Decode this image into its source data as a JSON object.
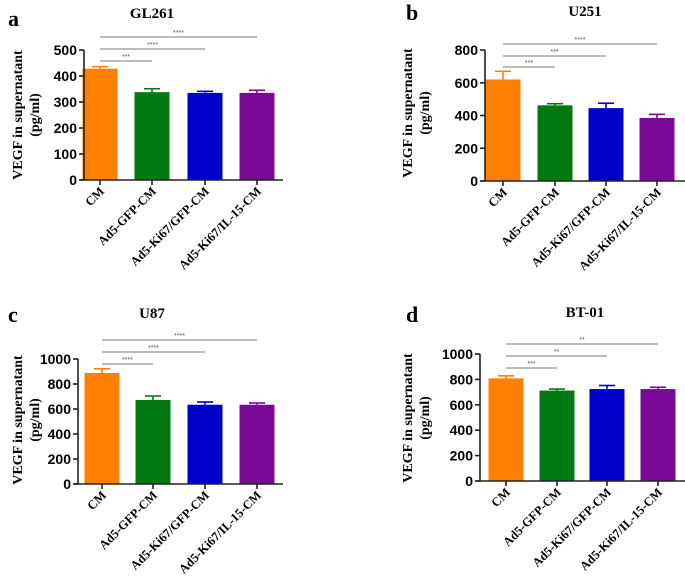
{
  "figure": {
    "colors": {
      "CM": "#ff8000",
      "Ad5-GFP-CM": "#007a10",
      "Ad5-Ki67/GFP-CM": "#0000c8",
      "Ad5-Ki67/IL-15-CM": "#7a0a96"
    }
  },
  "chart_data": [
    {
      "panel": "a",
      "type": "bar",
      "title": "GL261",
      "xlabel": "",
      "ylabel": "VEGF in supernatant (pg/ml)",
      "categories": [
        "CM",
        "Ad5-GFP-CM",
        "Ad5-Ki67/GFP-CM",
        "Ad5-Ki67/IL-15-CM"
      ],
      "values": [
        428,
        338,
        335,
        335
      ],
      "error": [
        8,
        13,
        6,
        10
      ],
      "ylim": [
        0,
        500
      ],
      "yticks": [
        0,
        100,
        200,
        300,
        400,
        500
      ],
      "significance": [
        {
          "from": "CM",
          "to": "Ad5-GFP-CM",
          "label": "***"
        },
        {
          "from": "CM",
          "to": "Ad5-Ki67/GFP-CM",
          "label": "****"
        },
        {
          "from": "CM",
          "to": "Ad5-Ki67/IL-15-CM",
          "label": "****"
        }
      ]
    },
    {
      "panel": "b",
      "type": "bar",
      "title": "U251",
      "xlabel": "",
      "ylabel": "VEGF in supernatant (pg/ml)",
      "categories": [
        "CM",
        "Ad5-GFP-CM",
        "Ad5-Ki67/GFP-CM",
        "Ad5-Ki67/IL-15-CM"
      ],
      "values": [
        620,
        462,
        445,
        385
      ],
      "error": [
        50,
        10,
        30,
        22
      ],
      "ylim": [
        0,
        800
      ],
      "yticks": [
        0,
        200,
        400,
        600,
        800
      ],
      "significance": [
        {
          "from": "CM",
          "to": "Ad5-GFP-CM",
          "label": "***"
        },
        {
          "from": "CM",
          "to": "Ad5-Ki67/GFP-CM",
          "label": "***"
        },
        {
          "from": "CM",
          "to": "Ad5-Ki67/IL-15-CM",
          "label": "****"
        }
      ]
    },
    {
      "panel": "c",
      "type": "bar",
      "title": "U87",
      "xlabel": "",
      "ylabel": "VEGF in supernatant (pg/ml)",
      "categories": [
        "CM",
        "Ad5-GFP-CM",
        "Ad5-Ki67/GFP-CM",
        "Ad5-Ki67/IL-15-CM"
      ],
      "values": [
        888,
        672,
        634,
        634
      ],
      "error": [
        34,
        32,
        22,
        14
      ],
      "ylim": [
        0,
        1000
      ],
      "yticks": [
        0,
        200,
        400,
        600,
        800,
        1000
      ],
      "significance": [
        {
          "from": "CM",
          "to": "Ad5-GFP-CM",
          "label": "****"
        },
        {
          "from": "CM",
          "to": "Ad5-Ki67/GFP-CM",
          "label": "****"
        },
        {
          "from": "CM",
          "to": "Ad5-Ki67/IL-15-CM",
          "label": "****"
        }
      ]
    },
    {
      "panel": "d",
      "type": "bar",
      "title": "BT-01",
      "xlabel": "",
      "ylabel": "VEGF in supernatant (pg/ml)",
      "categories": [
        "CM",
        "Ad5-GFP-CM",
        "Ad5-Ki67/GFP-CM",
        "Ad5-Ki67/IL-15-CM"
      ],
      "values": [
        808,
        712,
        724,
        724
      ],
      "error": [
        20,
        12,
        28,
        14
      ],
      "ylim": [
        0,
        1000
      ],
      "yticks": [
        0,
        200,
        400,
        600,
        800,
        1000
      ],
      "significance": [
        {
          "from": "CM",
          "to": "Ad5-GFP-CM",
          "label": "***"
        },
        {
          "from": "CM",
          "to": "Ad5-Ki67/GFP-CM",
          "label": "**"
        },
        {
          "from": "CM",
          "to": "Ad5-Ki67/IL-15-CM",
          "label": "**"
        }
      ]
    }
  ]
}
